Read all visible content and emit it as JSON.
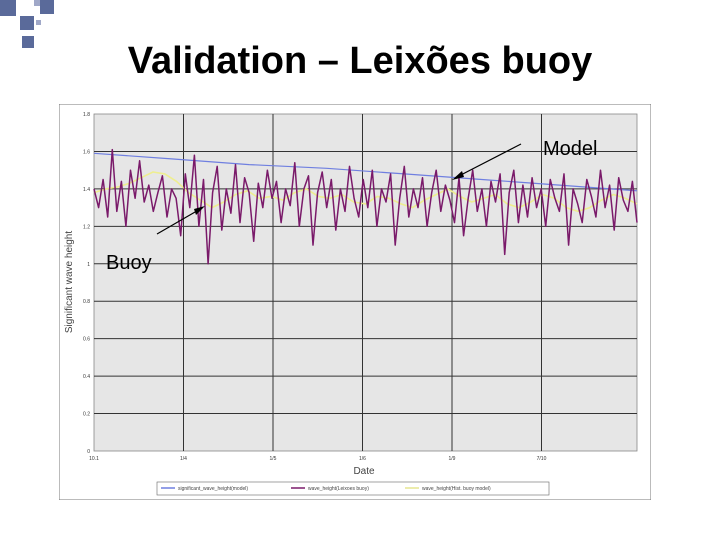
{
  "title": "Validation – Leixões buoy",
  "colors": {
    "deco_square": "#5a6a9a",
    "plot_bg": "#e6e6e6",
    "gridline": "#333333",
    "model_line": "#6f7fe0",
    "buoy_line": "#7a1a6a",
    "third_line": "#eeee90"
  },
  "annotations": {
    "model": "Model",
    "buoy": "Buoy"
  },
  "chart_data": {
    "type": "line",
    "xlabel": "Date",
    "ylabel": "Significant wave height",
    "ylim": [
      0,
      1.8
    ],
    "x_tick_labels": [
      "10.1",
      "1/4",
      "1/5",
      "1/6",
      "1/9",
      "7/10"
    ],
    "y_tick_labels": [
      "0",
      "0.2",
      "0.4",
      "0.6",
      "0.8",
      "1",
      "1.2",
      "1.4",
      "1.6",
      "1.8"
    ],
    "y_ticks": [
      0,
      0.2,
      0.4,
      0.6,
      0.8,
      1,
      1.2,
      1.4,
      1.6,
      1.8
    ],
    "grid": true,
    "legend_position": "bottom",
    "legend_entries": [
      "significant_wave_height(model)",
      "wave_height(Leixoes buoy)",
      "wave_height(Hist. buoy model)"
    ],
    "series": [
      {
        "values": [
          1.59,
          1.56,
          1.53,
          1.51,
          1.48,
          1.45,
          1.42,
          1.39
        ]
      },
      {
        "values": [
          1.4,
          1.3,
          1.45,
          1.25,
          1.61,
          1.28,
          1.44,
          1.2,
          1.5,
          1.35,
          1.55,
          1.33,
          1.42,
          1.28,
          1.38,
          1.47,
          1.25,
          1.4,
          1.35,
          1.15,
          1.48,
          1.3,
          1.58,
          1.2,
          1.45,
          1.0,
          1.38,
          1.52,
          1.18,
          1.4,
          1.27,
          1.53,
          1.22,
          1.46,
          1.38,
          1.12,
          1.43,
          1.3,
          1.5,
          1.35,
          1.44,
          1.22,
          1.4,
          1.31,
          1.54,
          1.2,
          1.4,
          1.47,
          1.1,
          1.38,
          1.49,
          1.3,
          1.45,
          1.18,
          1.4,
          1.28,
          1.52,
          1.35,
          1.25,
          1.45,
          1.3,
          1.5,
          1.2,
          1.4,
          1.33,
          1.48,
          1.1,
          1.35,
          1.52,
          1.25,
          1.4,
          1.3,
          1.46,
          1.2,
          1.38,
          1.5,
          1.28,
          1.42,
          1.34,
          1.22,
          1.46,
          1.15,
          1.35,
          1.5,
          1.28,
          1.4,
          1.2,
          1.44,
          1.33,
          1.48,
          1.05,
          1.38,
          1.5,
          1.22,
          1.42,
          1.25,
          1.46,
          1.3,
          1.4,
          1.2,
          1.45,
          1.35,
          1.28,
          1.48,
          1.1,
          1.4,
          1.32,
          1.22,
          1.45,
          1.36,
          1.25,
          1.5,
          1.3,
          1.42,
          1.18,
          1.46,
          1.34,
          1.28,
          1.44,
          1.22
        ]
      },
      {
        "values": [
          1.38,
          1.4,
          1.41,
          1.43,
          1.46,
          1.49,
          1.48,
          1.44,
          1.38,
          1.34,
          1.3,
          1.33,
          1.37,
          1.39,
          1.35,
          1.36,
          1.34,
          1.38,
          1.4,
          1.36,
          1.35,
          1.37,
          1.33,
          1.32,
          1.36,
          1.35,
          1.32,
          1.3,
          1.34,
          1.37,
          1.4,
          1.36,
          1.33,
          1.35,
          1.37,
          1.32,
          1.3,
          1.33,
          1.37,
          1.35,
          1.3,
          1.28,
          1.3,
          1.34,
          1.37,
          1.35,
          1.32
        ]
      }
    ]
  }
}
